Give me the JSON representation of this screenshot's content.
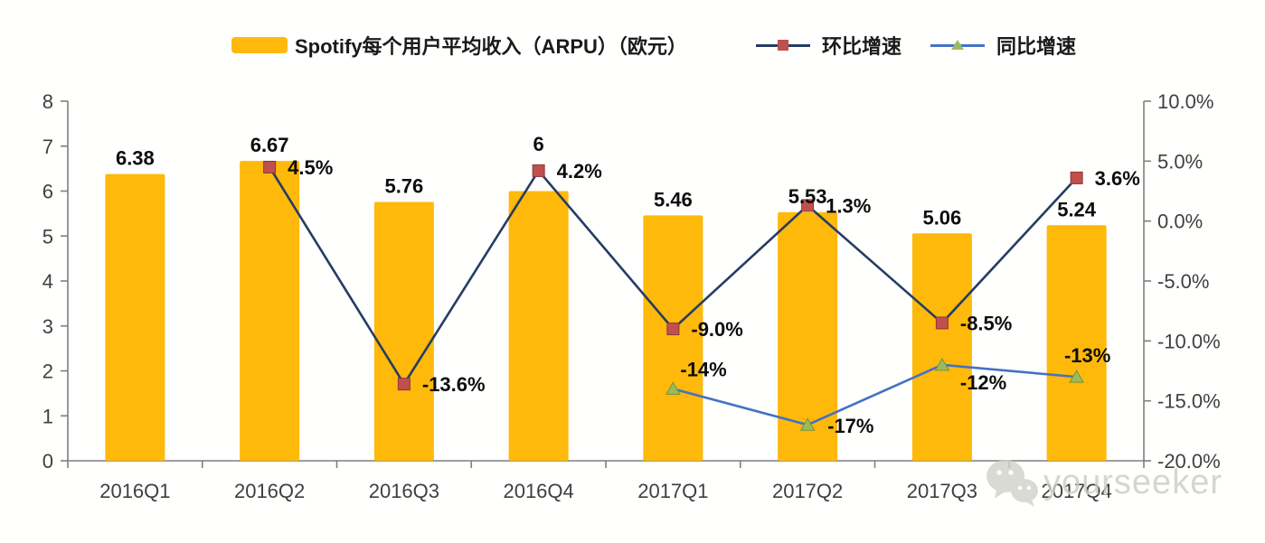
{
  "legend": {
    "items": [
      {
        "label": "Spotify每个用户平均收入（ARPU）（欧元）",
        "swatch": "bar",
        "color": "#FFB90A"
      },
      {
        "label": "环比增速",
        "swatch": "line-square",
        "line_color": "#263C64",
        "marker_color": "#C0504D"
      },
      {
        "label": "同比增速",
        "swatch": "line-triangle",
        "line_color": "#4472C4",
        "marker_color": "#9BBB59"
      }
    ]
  },
  "chart_data": {
    "type": "combo-bar-line",
    "categories": [
      "2016Q1",
      "2016Q2",
      "2016Q3",
      "2016Q4",
      "2017Q1",
      "2017Q2",
      "2017Q3",
      "2017Q4"
    ],
    "series": [
      {
        "name": "Spotify每个用户平均收入（ARPU）（欧元）",
        "type": "bar",
        "axis": "left",
        "color": "#FFB90A",
        "values": [
          6.38,
          6.67,
          5.76,
          6,
          5.46,
          5.53,
          5.06,
          5.24
        ],
        "data_labels": [
          "6.38",
          "6.67",
          "5.76",
          "6",
          "5.46",
          "5.53",
          "5.06",
          "5.24"
        ]
      },
      {
        "name": "环比增速",
        "type": "line",
        "axis": "right",
        "line_color": "#263C64",
        "marker": "square",
        "marker_color": "#C0504D",
        "marker_border": "#8C3836",
        "values": [
          null,
          4.5,
          -13.6,
          4.2,
          -9.0,
          1.3,
          -8.5,
          3.6
        ],
        "data_labels": [
          "",
          "4.5%",
          "-13.6%",
          "4.2%",
          "-9.0%",
          "1.3%",
          "-8.5%",
          "3.6%"
        ]
      },
      {
        "name": "同比增速",
        "type": "line",
        "axis": "right",
        "line_color": "#4472C4",
        "marker": "triangle",
        "marker_color": "#9BBB59",
        "marker_border": "#76923C",
        "values": [
          null,
          null,
          null,
          null,
          -14,
          -17,
          -12,
          -13
        ],
        "data_labels": [
          "",
          "",
          "",
          "",
          "-14%",
          "-17%",
          "-12%",
          "-13%"
        ]
      }
    ],
    "left_axis": {
      "min": 0,
      "max": 8,
      "step": 1,
      "tick_labels": [
        "0",
        "1",
        "2",
        "3",
        "4",
        "5",
        "6",
        "7",
        "8"
      ]
    },
    "right_axis": {
      "min": -20,
      "max": 10,
      "step": 5,
      "tick_labels": [
        "-20.0%",
        "-15.0%",
        "-10.0%",
        "-5.0%",
        "0.0%",
        "5.0%",
        "10.0%"
      ]
    },
    "grid": false,
    "legend_position": "top",
    "axis_color": "#7f7f7f",
    "tick_text_color": "#3f3f3f",
    "data_label_color": "#0d0d0d"
  },
  "watermark": {
    "text": "yourseeker",
    "icon": "wechat-icon"
  }
}
